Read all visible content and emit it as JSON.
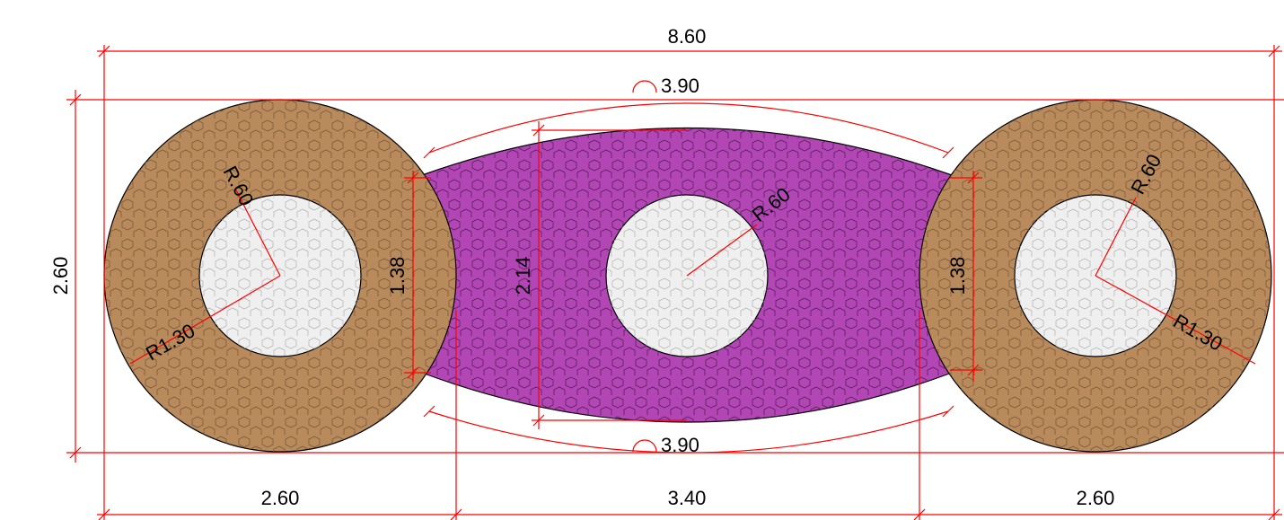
{
  "colors": {
    "ring_fill": "#b88a5c",
    "lens_fill": "#b146b4",
    "hole_fill": "#efefef",
    "dimension_line": "#ff0000",
    "outline": "#000000",
    "hatch_pattern_ring": "#7a5a3a",
    "hatch_pattern_lens": "#5a1f5c",
    "hatch_pattern_hole": "#b8b8b8"
  },
  "dimensions": {
    "overall_width": "8.60",
    "top_arc_length": "3.90",
    "bottom_arc_length": "3.90",
    "ring_height": "2.60",
    "lens_height": "2.14",
    "left_neck_height": "1.38",
    "right_neck_height": "1.38",
    "left_segment_width": "2.60",
    "middle_segment_width": "3.40",
    "right_segment_width": "2.60",
    "left_inner_radius": "R.60",
    "left_outer_radius": "R1.30",
    "center_inner_radius": "R.60",
    "right_inner_radius": "R.60",
    "right_outer_radius": "R1.30"
  },
  "symbols": {
    "arc_length_icon": "arc-length-symbol"
  }
}
